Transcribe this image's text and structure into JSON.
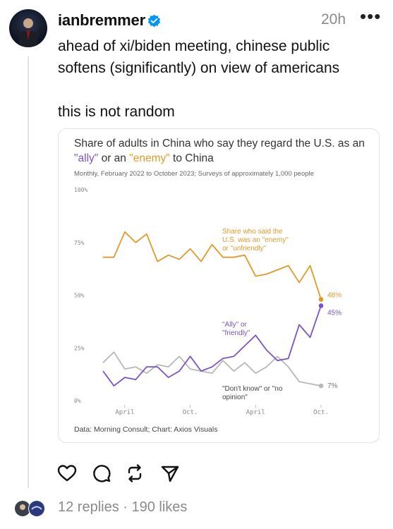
{
  "post": {
    "username": "ianbremmer",
    "time": "20h",
    "more_label": "•••",
    "text_line1": "ahead of xi/biden meeting, chinese public softens (significantly) on view of americans",
    "text_line2": "this is not random"
  },
  "chart_data": {
    "type": "line",
    "title_parts": [
      "Share of adults in China who say they regard the U.S. as an ",
      "\"ally\"",
      " or an ",
      "\"enemy\"",
      " to China"
    ],
    "subtitle": "Monthly, February 2022 to October 2023; Surveys of approximately 1,000 people",
    "source": "Data: Morning Consult; Chart: Axios Visuals",
    "x_start": "2022-02",
    "x_end": "2023-10",
    "x_ticks": [
      {
        "label": "April",
        "date": "2022-04"
      },
      {
        "label": "Oct.",
        "date": "2022-10"
      },
      {
        "label": "April",
        "date": "2023-04"
      },
      {
        "label": "Oct.",
        "date": "2023-10"
      }
    ],
    "y_ticks": [
      {
        "label": "100%",
        "value": 100
      },
      {
        "label": "75%",
        "value": 75
      },
      {
        "label": "50%",
        "value": 50
      },
      {
        "label": "25%",
        "value": 25
      },
      {
        "label": "0%",
        "value": 0
      }
    ],
    "ylim": [
      0,
      100
    ],
    "grid": false,
    "series": [
      {
        "name": "Share who said the U.S. was an \"enemy\" or \"unfriendly\"",
        "color": "#e09a28",
        "label_lines": [
          "Share who said the",
          "U.S. was an \"enemy\"",
          "or \"unfriendly\""
        ],
        "end_label": "48%",
        "values": [
          68,
          68,
          80,
          75,
          79,
          66,
          69,
          67,
          72,
          66,
          74,
          68,
          68,
          69,
          59,
          60,
          62,
          64,
          56,
          64,
          48
        ]
      },
      {
        "name": "\"Ally\" or \"friendly\"",
        "color": "#7b54c4",
        "label_lines": [
          "\"Ally\" or",
          "\"friendly\""
        ],
        "end_label": "45%",
        "values": [
          14,
          7,
          11,
          10,
          16,
          16,
          11,
          14,
          21,
          14,
          16,
          20,
          21,
          26,
          31,
          24,
          19,
          20,
          36,
          30,
          45
        ]
      },
      {
        "name": "\"Don't know\" or \"no opinion\"",
        "color": "#b8b8b8",
        "label_lines": [
          "\"Don't know\" or \"no",
          "opinion\""
        ],
        "end_label": "7%",
        "values": [
          18,
          23,
          15,
          16,
          13,
          17,
          16,
          21,
          15,
          14,
          13,
          19,
          14,
          18,
          13,
          16,
          21,
          16,
          9,
          8,
          7
        ]
      }
    ]
  },
  "footer": {
    "stats": "12 replies · 190 likes"
  },
  "colors": {
    "verified": "#0095f6",
    "muted": "#8a8a8a",
    "ally": "#7b54c4",
    "enemy": "#e09a28",
    "unknown": "#b8b8b8"
  },
  "icons": [
    "verified-badge-icon",
    "more-icon",
    "like-heart-icon",
    "comment-icon",
    "repost-icon",
    "share-icon"
  ]
}
